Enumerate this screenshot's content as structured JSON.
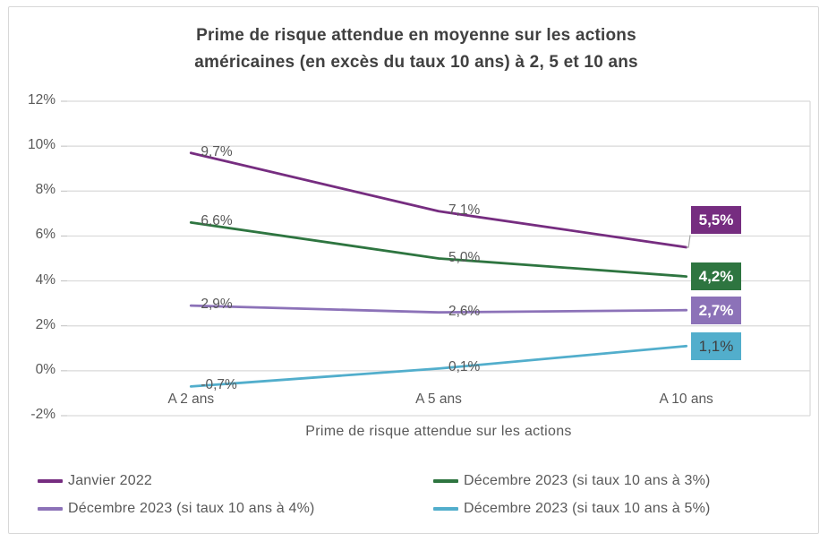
{
  "window": {
    "background": "#ffffff",
    "frame_border_color": "#d8d8d8"
  },
  "chart_data": {
    "type": "line",
    "title": "Prime de risque attendue en moyenne sur les actions américaines (en excès du taux 10 ans) à 2, 5 et 10 ans",
    "title_lines": [
      "Prime de risque attendue en moyenne sur les actions",
      "américaines (en excès du taux 10 ans) à 2, 5 et 10 ans"
    ],
    "categories": [
      "A 2 ans",
      "A 5 ans",
      "A 10 ans"
    ],
    "series": [
      {
        "name": "Janvier 2022",
        "color": "#762D80",
        "values": [
          9.7,
          7.1,
          5.5
        ],
        "point_labels": [
          "9,7%",
          "7,1%",
          "5,5%"
        ],
        "end_box": {
          "bg": "#762D80",
          "text_color": "#ffffff",
          "bold": true,
          "has_leader": true
        }
      },
      {
        "name": "Décembre 2023 (si taux 10 ans à 3%)",
        "color": "#2E7540",
        "values": [
          6.6,
          5.0,
          4.2
        ],
        "point_labels": [
          "6,6%",
          "5,0%",
          "4,2%"
        ],
        "end_box": {
          "bg": "#2E7540",
          "text_color": "#ffffff",
          "bold": true,
          "has_leader": false
        }
      },
      {
        "name": "Décembre 2023 (si taux 10 ans à 4%)",
        "color": "#8C72B8",
        "values": [
          2.9,
          2.6,
          2.7
        ],
        "point_labels": [
          "2,9%",
          "2,6%",
          "2,7%"
        ],
        "end_box": {
          "bg": "#8C72B8",
          "text_color": "#ffffff",
          "bold": true,
          "has_leader": false
        }
      },
      {
        "name": "Décembre 2023 (si taux 10 ans à 5%)",
        "color": "#52AECC",
        "values": [
          -0.7,
          0.1,
          1.1
        ],
        "point_labels": [
          "-0,7%",
          "0,1%",
          "1,1%"
        ],
        "end_box": {
          "bg": "#52AECC",
          "text_color": "#404040",
          "bold": false,
          "has_leader": false
        }
      }
    ],
    "xlabel": "Prime de risque attendue sur les actions",
    "ylabel": "",
    "ylim": [
      -2,
      12
    ],
    "y_ticks": [
      {
        "value": 12,
        "label": "12%"
      },
      {
        "value": 10,
        "label": "10%"
      },
      {
        "value": 8,
        "label": "8%"
      },
      {
        "value": 6,
        "label": "6%"
      },
      {
        "value": 4,
        "label": "4%"
      },
      {
        "value": 2,
        "label": "2%"
      },
      {
        "value": 0,
        "label": "0%"
      },
      {
        "value": -2,
        "label": "-2%"
      }
    ],
    "grid": true,
    "legend_position": "bottom",
    "colors": {
      "grid": "#d9d9d9",
      "tick_mark": "#bfbfbf",
      "axis_text": "#595959",
      "title_text": "#404040",
      "leader_line": "#a6a6a6"
    }
  }
}
